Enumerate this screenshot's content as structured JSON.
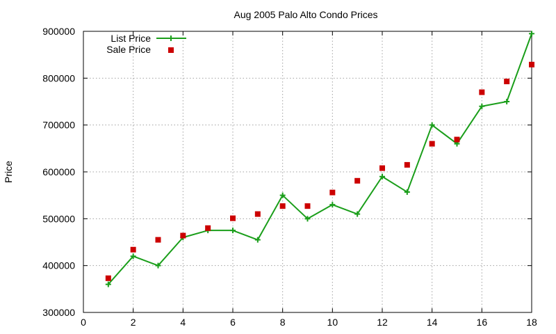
{
  "chart_data": {
    "type": "line",
    "title": "Aug 2005 Palo Alto Condo Prices",
    "xlabel": "",
    "ylabel": "Price",
    "xlim": [
      0,
      18
    ],
    "ylim": [
      300000,
      900000
    ],
    "xticks": [
      0,
      2,
      4,
      6,
      8,
      10,
      12,
      14,
      16,
      18
    ],
    "yticks": [
      300000,
      400000,
      500000,
      600000,
      700000,
      800000,
      900000
    ],
    "grid": true,
    "legend_position": "top-left",
    "series": [
      {
        "name": "List Price",
        "style": "line+points",
        "marker": "plus",
        "color": "#1a9e1a",
        "x": [
          1,
          2,
          3,
          4,
          5,
          6,
          7,
          8,
          9,
          10,
          11,
          12,
          13,
          14,
          15,
          16,
          17,
          18
        ],
        "y": [
          360000,
          420000,
          400000,
          460000,
          475000,
          475000,
          455000,
          550000,
          500000,
          530000,
          510000,
          590000,
          557000,
          700000,
          660000,
          740000,
          750000,
          895000
        ]
      },
      {
        "name": "Sale Price",
        "style": "points",
        "marker": "square",
        "color": "#cc0000",
        "x": [
          1,
          2,
          3,
          4,
          5,
          6,
          7,
          8,
          9,
          10,
          11,
          12,
          13,
          14,
          15,
          16,
          17,
          18
        ],
        "y": [
          373000,
          434000,
          455000,
          464000,
          480000,
          501000,
          510000,
          527000,
          527000,
          556000,
          581000,
          608000,
          615000,
          660000,
          669000,
          770000,
          793000,
          829000
        ]
      }
    ]
  }
}
